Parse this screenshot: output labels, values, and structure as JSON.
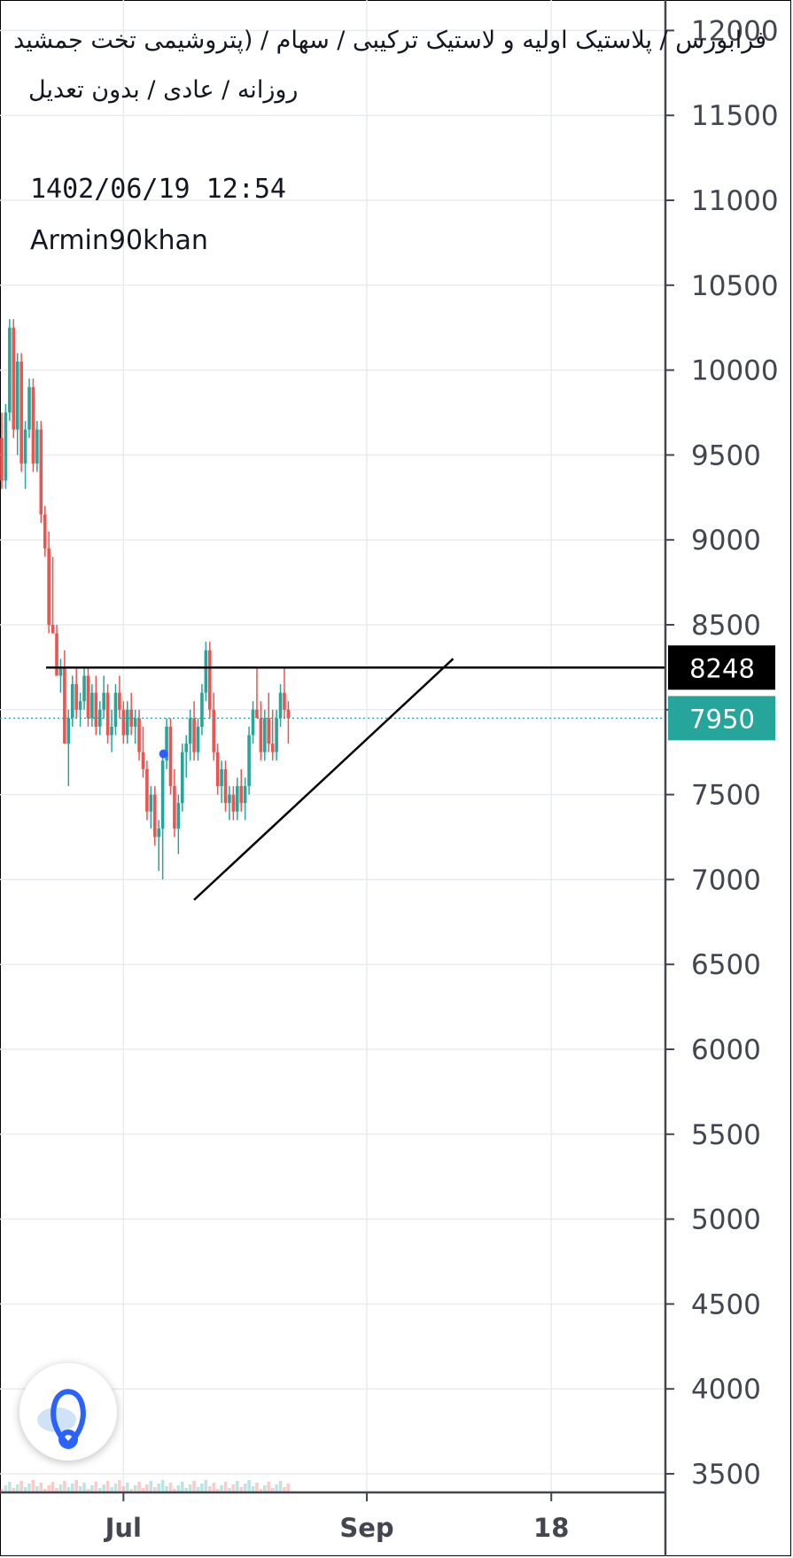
{
  "header": {
    "title": "فرابورس / پلاستیک اولیه و لاستیک ترکیبی / سهام / (پتروشیمی تخت جمشید",
    "subtitle": "روزانه / عادی / بدون تعدیل",
    "datetime": "1402/06/19 12:54",
    "author": "Armin90khan"
  },
  "colors": {
    "up": "#26a69a",
    "down": "#ef5350",
    "grid": "#e8ecf0",
    "axis": "#434651",
    "price_badge": "#26a69a",
    "level_badge": "#000000"
  },
  "chart_data": {
    "type": "candlestick",
    "y_axis": {
      "ticks": [
        3500,
        4000,
        4500,
        5000,
        5500,
        6000,
        6500,
        7000,
        7500,
        8000,
        8500,
        9000,
        9500,
        10000,
        10500,
        11000,
        11500,
        12000
      ],
      "ylim": [
        3420,
        12100
      ]
    },
    "x_axis": {
      "labels": [
        {
          "label": "Jul",
          "day": 31
        },
        {
          "label": "Sep",
          "day": 93
        },
        {
          "label": "18",
          "day": 140
        }
      ]
    },
    "ohlc": [
      [
        9600,
        9750,
        9300,
        9350
      ],
      [
        9350,
        9800,
        9300,
        9750
      ],
      [
        9750,
        10300,
        9700,
        10250
      ],
      [
        10250,
        10300,
        9600,
        9650
      ],
      [
        9650,
        10100,
        9500,
        10050
      ],
      [
        10050,
        10100,
        9400,
        9450
      ],
      [
        9450,
        9700,
        9300,
        9650
      ],
      [
        9650,
        9950,
        9600,
        9900
      ],
      [
        9900,
        9950,
        9400,
        9450
      ],
      [
        9450,
        9700,
        9400,
        9650
      ],
      [
        9650,
        9700,
        9100,
        9150
      ],
      [
        9150,
        9200,
        8900,
        8950
      ],
      [
        8950,
        9050,
        8450,
        8500
      ],
      [
        8500,
        8900,
        8450,
        8450
      ],
      [
        8450,
        8500,
        8250,
        8200
      ],
      [
        8200,
        8300,
        8100,
        8250
      ],
      [
        8250,
        8350,
        7800,
        7800
      ],
      [
        7800,
        8000,
        7550,
        7950
      ],
      [
        7950,
        8200,
        7900,
        8150
      ],
      [
        8150,
        8250,
        7950,
        8000
      ],
      [
        8000,
        8100,
        7900,
        8050
      ],
      [
        8050,
        8250,
        8000,
        8200
      ],
      [
        8200,
        8250,
        7900,
        7950
      ],
      [
        7950,
        8150,
        7900,
        8100
      ],
      [
        8100,
        8200,
        7850,
        7900
      ],
      [
        7900,
        8050,
        7850,
        8000
      ],
      [
        8000,
        8200,
        7950,
        8100
      ],
      [
        8100,
        8150,
        7800,
        7850
      ],
      [
        7850,
        8000,
        7750,
        7900
      ],
      [
        7900,
        8150,
        7850,
        8100
      ],
      [
        8100,
        8200,
        7950,
        8000
      ],
      [
        8000,
        8050,
        7800,
        7850
      ],
      [
        7850,
        8050,
        7800,
        8000
      ],
      [
        8000,
        8100,
        7850,
        7900
      ],
      [
        7900,
        8000,
        7800,
        7950
      ],
      [
        7950,
        8000,
        7700,
        7750
      ],
      [
        7750,
        7900,
        7600,
        7650
      ],
      [
        7650,
        7700,
        7350,
        7400
      ],
      [
        7400,
        7550,
        7300,
        7500
      ],
      [
        7500,
        7550,
        7200,
        7250
      ],
      [
        7250,
        7350,
        7050,
        7300
      ],
      [
        7300,
        7750,
        7000,
        7700
      ],
      [
        7700,
        7950,
        7650,
        7900
      ],
      [
        7900,
        7950,
        7500,
        7550
      ],
      [
        7550,
        7650,
        7250,
        7300
      ],
      [
        7300,
        7500,
        7150,
        7450
      ],
      [
        7450,
        7800,
        7400,
        7750
      ],
      [
        7750,
        7850,
        7600,
        7800
      ],
      [
        7800,
        8000,
        7700,
        7950
      ],
      [
        7950,
        8050,
        7700,
        7750
      ],
      [
        7750,
        7950,
        7700,
        7900
      ],
      [
        7900,
        8150,
        7850,
        8100
      ],
      [
        8100,
        8400,
        8050,
        8350
      ],
      [
        8350,
        8400,
        7950,
        8000
      ],
      [
        8000,
        8100,
        7700,
        7750
      ],
      [
        7750,
        7800,
        7500,
        7550
      ],
      [
        7550,
        7700,
        7450,
        7650
      ],
      [
        7650,
        7700,
        7400,
        7450
      ],
      [
        7450,
        7550,
        7350,
        7500
      ],
      [
        7500,
        7550,
        7350,
        7400
      ],
      [
        7400,
        7600,
        7350,
        7550
      ],
      [
        7550,
        7650,
        7400,
        7450
      ],
      [
        7450,
        7600,
        7350,
        7550
      ],
      [
        7550,
        7900,
        7500,
        7850
      ],
      [
        7850,
        8050,
        7800,
        8000
      ],
      [
        8000,
        8250,
        7950,
        7950
      ],
      [
        7950,
        8050,
        7700,
        7750
      ],
      [
        7750,
        8000,
        7700,
        7950
      ],
      [
        7950,
        8100,
        7750,
        7800
      ],
      [
        7800,
        8000,
        7700,
        7750
      ],
      [
        7750,
        8000,
        7700,
        7950
      ],
      [
        7950,
        8150,
        7900,
        8100
      ],
      [
        8100,
        8250,
        7950,
        8000
      ],
      [
        8000,
        8050,
        7800,
        7950
      ]
    ],
    "annotations": {
      "resistance_level": 8248,
      "last_price": 7950,
      "trendline": {
        "start": {
          "day": 49,
          "price": 6880
        },
        "end": {
          "day": 115,
          "price": 8300
        }
      }
    },
    "volume_spike_label": ""
  },
  "labels": {
    "level_badge": "8248",
    "price_badge": "7950"
  }
}
